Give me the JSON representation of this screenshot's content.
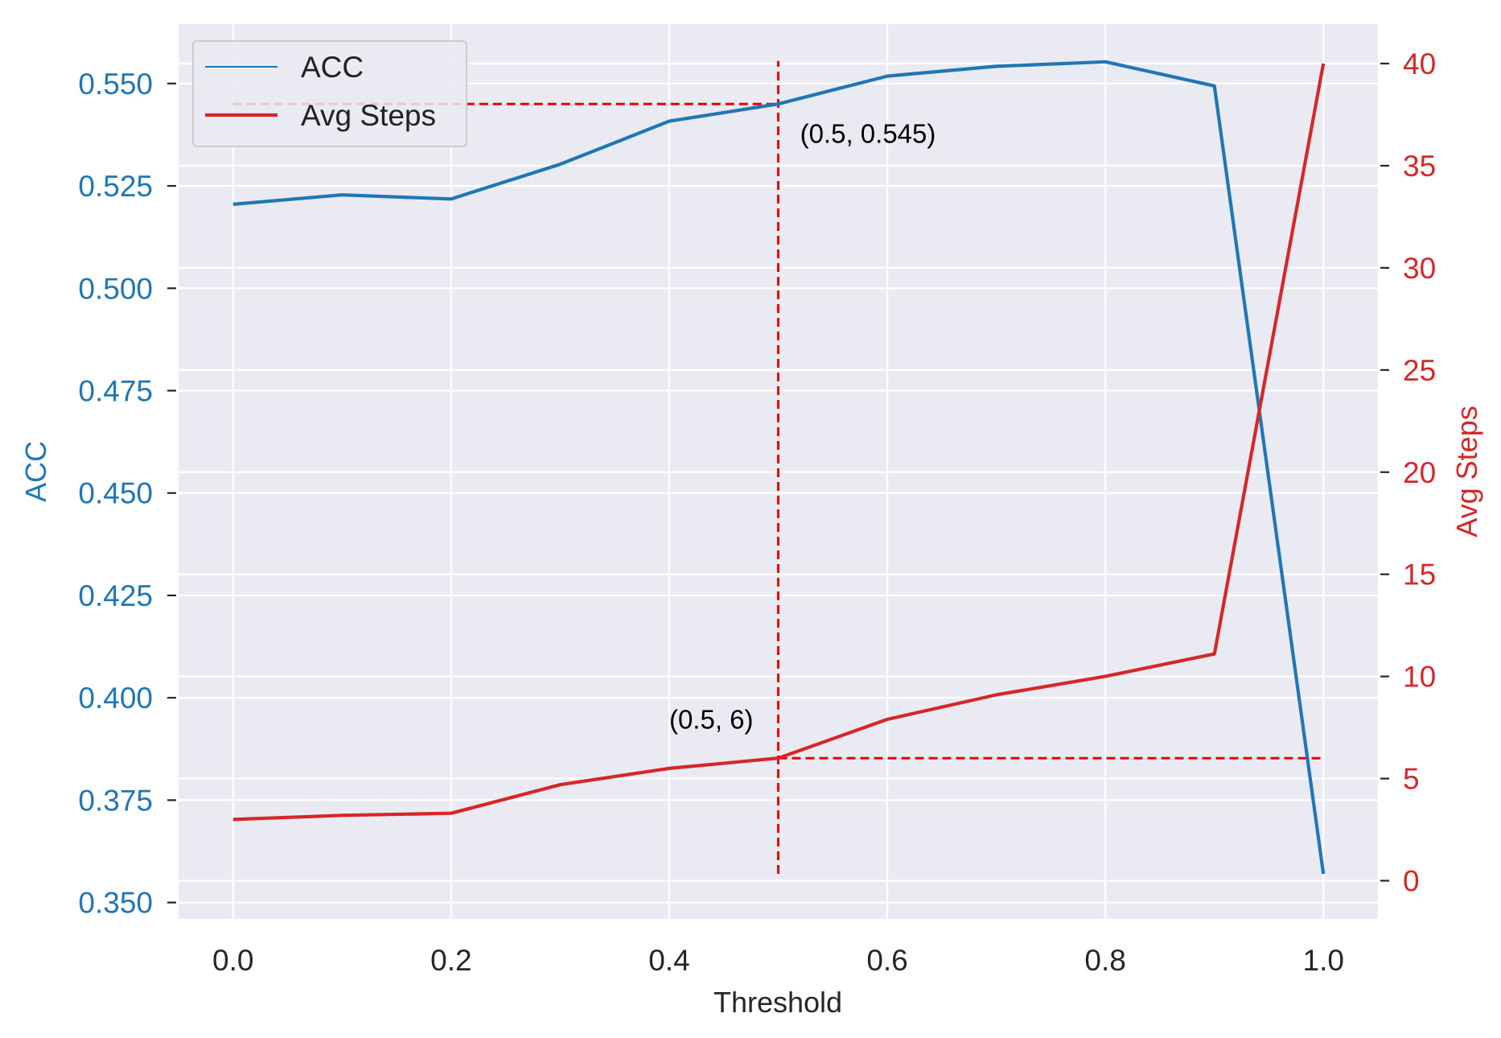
{
  "chart_data": {
    "type": "line",
    "xlabel": "Threshold",
    "ylabel_left": "ACC",
    "ylabel_right": "Avg Steps",
    "grid": true,
    "legend_position": "top-left",
    "x": [
      0.0,
      0.1,
      0.2,
      0.3,
      0.4,
      0.5,
      0.6,
      0.7,
      0.8,
      0.9,
      1.0
    ],
    "xlim": [
      -0.05,
      1.05
    ],
    "ylim_left": [
      0.346,
      0.5645
    ],
    "ylim_right": [
      -1.87,
      41.93
    ],
    "x_ticks": [
      0.0,
      0.2,
      0.4,
      0.6,
      0.8,
      1.0
    ],
    "x_tick_labels": [
      "0.0",
      "0.2",
      "0.4",
      "0.6",
      "0.8",
      "1.0"
    ],
    "y_left_ticks": [
      0.35,
      0.375,
      0.4,
      0.425,
      0.45,
      0.475,
      0.5,
      0.525,
      0.55
    ],
    "y_left_tick_labels": [
      "0.350",
      "0.375",
      "0.400",
      "0.425",
      "0.450",
      "0.475",
      "0.500",
      "0.525",
      "0.550"
    ],
    "y_right_ticks": [
      0,
      5,
      10,
      15,
      20,
      25,
      30,
      35,
      40
    ],
    "y_right_tick_labels": [
      "0",
      "5",
      "10",
      "15",
      "20",
      "25",
      "30",
      "35",
      "40"
    ],
    "series": [
      {
        "name": "ACC",
        "axis": "left",
        "color": "#1f77b4",
        "values": [
          0.5205,
          0.5228,
          0.5218,
          0.5303,
          0.5408,
          0.545,
          0.5518,
          0.5542,
          0.5553,
          0.5494,
          0.357
        ]
      },
      {
        "name": "Avg Steps",
        "axis": "right",
        "color": "#d62728",
        "values": [
          3.0,
          3.2,
          3.3,
          4.7,
          5.5,
          6.0,
          7.9,
          9.1,
          10.0,
          11.1,
          40.0
        ]
      }
    ],
    "reference_lines": [
      {
        "orientation": "vertical",
        "x": 0.5,
        "y_from_left": 0.357,
        "y_to_left": 0.5555,
        "color": "#ee0000"
      },
      {
        "orientation": "horizontal",
        "y_left": 0.545,
        "x_from": 0.0,
        "x_to": 0.5,
        "color": "#ee0000"
      },
      {
        "orientation": "horizontal",
        "y_right": 6.0,
        "x_from": 0.5,
        "x_to": 1.0,
        "color": "#ee0000"
      }
    ],
    "annotations": [
      {
        "text": "(0.5, 0.545)",
        "x": 0.52,
        "y_left": 0.5355
      },
      {
        "text": "(0.5, 6)",
        "x": 0.4,
        "y_left": 0.3925
      }
    ],
    "colors": {
      "background": "#eaeaf2",
      "grid": "#ffffff",
      "left_axis": "#1f77b4",
      "right_axis": "#d62728",
      "reference": "#ee0000"
    }
  }
}
